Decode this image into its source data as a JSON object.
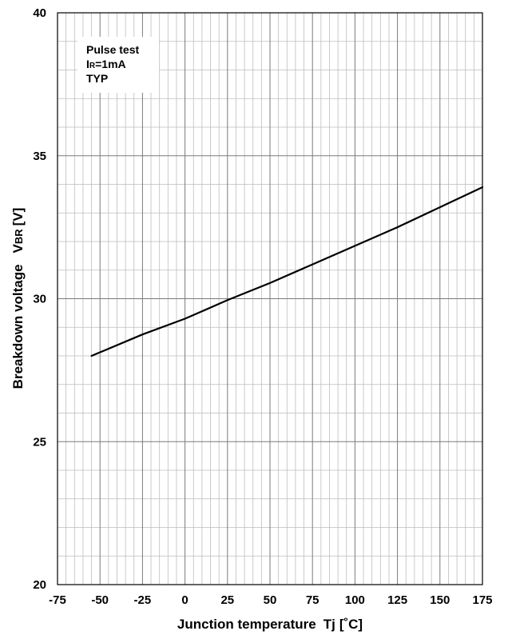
{
  "chart_data": {
    "type": "line",
    "title": "",
    "xlabel": {
      "main": "Junction temperature",
      "symbol": "Tj",
      "unit": "[˚C]"
    },
    "ylabel": {
      "main": "Breakdown voltage",
      "symbol": "V",
      "symbol_sub": "BR",
      "unit": "[V]"
    },
    "xlim": [
      -75,
      175
    ],
    "ylim": [
      20,
      40
    ],
    "xticks": [
      -75,
      -50,
      -25,
      0,
      25,
      50,
      75,
      100,
      125,
      150,
      175
    ],
    "yticks": [
      20,
      25,
      30,
      35,
      40
    ],
    "x_minor_step": 5,
    "y_minor_step": 1,
    "grid": true,
    "annotation": {
      "line1": "Pulse test",
      "line2_main": "I",
      "line2_sub": "R",
      "line2_rest": "=1mA",
      "line3": "TYP",
      "placement": "top-left"
    },
    "series": [
      {
        "x": [
          -55,
          -25,
          0,
          25,
          50,
          75,
          100,
          125,
          150,
          175
        ],
        "y": [
          28.0,
          28.75,
          29.3,
          29.95,
          30.55,
          31.2,
          31.85,
          32.5,
          33.2,
          33.9
        ]
      }
    ]
  }
}
